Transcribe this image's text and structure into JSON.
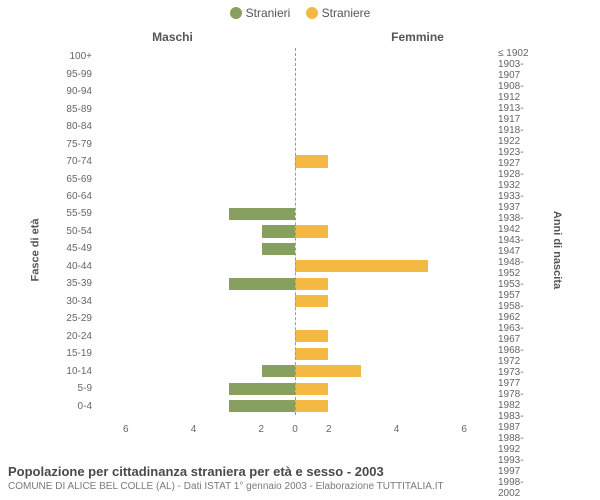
{
  "legend": {
    "male_label": "Stranieri",
    "female_label": "Straniere"
  },
  "colors": {
    "male": "#87a05f",
    "female": "#f4b942",
    "text": "#555555",
    "grid": "#999999",
    "bg": "#ffffff"
  },
  "header": {
    "left": "Maschi",
    "right": "Femmine"
  },
  "yaxis_left_title": "Fasce di età",
  "yaxis_right_title": "Anni di nascita",
  "age_labels": [
    "100+",
    "95-99",
    "90-94",
    "85-89",
    "80-84",
    "75-79",
    "70-74",
    "65-69",
    "60-64",
    "55-59",
    "50-54",
    "45-49",
    "40-44",
    "35-39",
    "30-34",
    "25-29",
    "20-24",
    "15-19",
    "10-14",
    "5-9",
    "0-4"
  ],
  "birth_labels": [
    "≤ 1902",
    "1903-1907",
    "1908-1912",
    "1913-1917",
    "1918-1922",
    "1923-1927",
    "1928-1932",
    "1933-1937",
    "1938-1942",
    "1943-1947",
    "1948-1952",
    "1953-1957",
    "1958-1962",
    "1963-1967",
    "1968-1972",
    "1973-1977",
    "1978-1982",
    "1983-1987",
    "1988-1992",
    "1993-1997",
    "1998-2002"
  ],
  "male_values": [
    0,
    0,
    0,
    0,
    0,
    0,
    0,
    0,
    0,
    2,
    1,
    1,
    0,
    2,
    0,
    0,
    0,
    0,
    1,
    2,
    2
  ],
  "female_values": [
    0,
    0,
    0,
    0,
    0,
    0,
    1,
    0,
    0,
    0,
    1,
    0,
    4,
    1,
    1,
    0,
    1,
    1,
    2,
    1,
    1
  ],
  "xmax": 6,
  "xticks": [
    0,
    2,
    4,
    6
  ],
  "title": "Popolazione per cittadinanza straniera per età e sesso - 2003",
  "subtitle": "COMUNE DI ALICE BEL COLLE (AL) - Dati ISTAT 1° gennaio 2003 - Elaborazione TUTTITALIA.IT"
}
